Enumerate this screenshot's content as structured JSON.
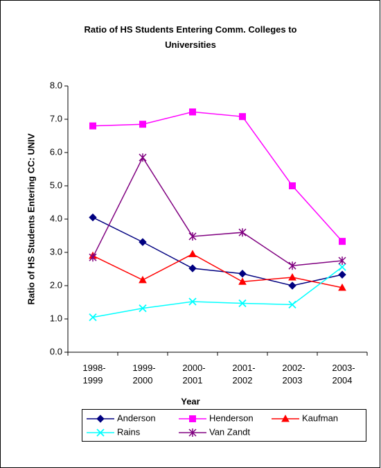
{
  "chart_data": {
    "type": "line",
    "title": "Ratio of HS Students Entering Comm. Colleges to Universities",
    "x_label": "Year",
    "y_label": "Ratio of HS Students Entering CC: UNIV",
    "categories": [
      "1998-1999",
      "1999-2000",
      "2000-2001",
      "2001-2002",
      "2002-2003",
      "2003-2004"
    ],
    "ylim": [
      0,
      8
    ],
    "yticks": [
      {
        "value": 0,
        "label": "0.0"
      },
      {
        "value": 1,
        "label": "1.0"
      },
      {
        "value": 2,
        "label": "2.0"
      },
      {
        "value": 3,
        "label": "3.0"
      },
      {
        "value": 4,
        "label": "4.0"
      },
      {
        "value": 5,
        "label": "5.0"
      },
      {
        "value": 6,
        "label": "6.0"
      },
      {
        "value": 7,
        "label": "7.0"
      },
      {
        "value": 8,
        "label": "8.0"
      }
    ],
    "grid": false,
    "legend": "bottom",
    "series": [
      {
        "name": "Anderson",
        "color": "#000080",
        "marker": "diamond",
        "values": [
          4.05,
          3.31,
          2.52,
          2.36,
          2.0,
          2.33
        ]
      },
      {
        "name": "Henderson",
        "color": "#ff00ff",
        "marker": "square",
        "values": [
          6.8,
          6.85,
          7.22,
          7.08,
          5.0,
          3.33
        ]
      },
      {
        "name": "Kaufman",
        "color": "#ff0000",
        "marker": "triangle",
        "values": [
          2.9,
          2.17,
          2.95,
          2.12,
          2.25,
          1.94
        ]
      },
      {
        "name": "Rains",
        "color": "#00ffff",
        "marker": "x",
        "values": [
          1.05,
          1.32,
          1.52,
          1.47,
          1.43,
          2.56
        ]
      },
      {
        "name": "Van Zandt",
        "color": "#800080",
        "marker": "star",
        "values": [
          2.85,
          5.85,
          3.48,
          3.6,
          2.6,
          2.75
        ]
      }
    ]
  }
}
